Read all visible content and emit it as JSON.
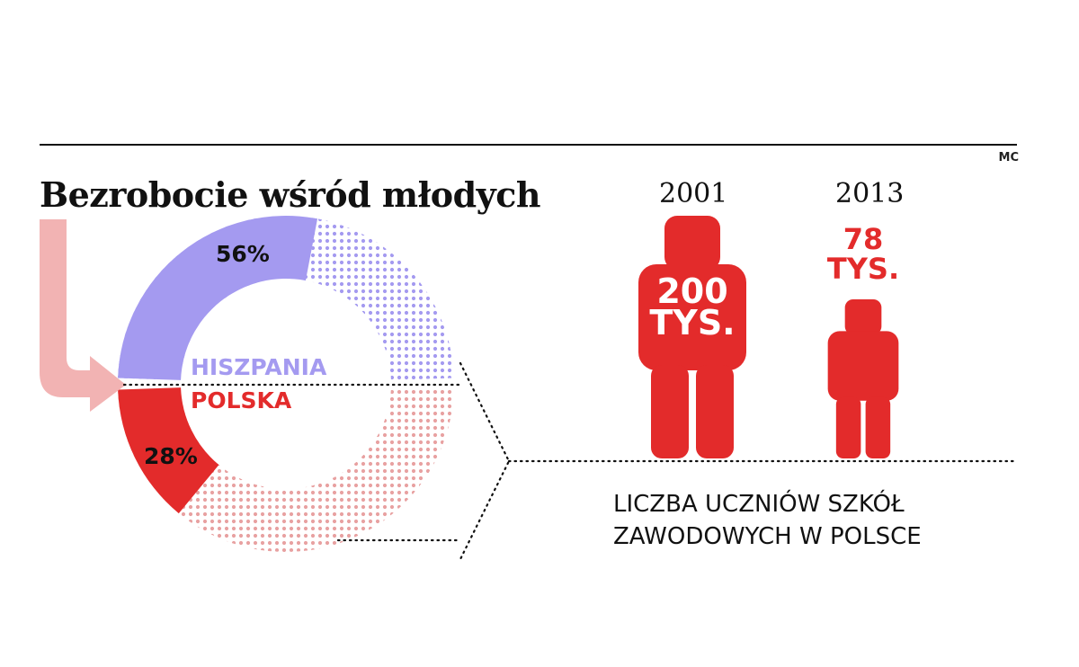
{
  "title": "Bezrobocie wśród młodych",
  "credit": "MC",
  "colors": {
    "spain": "#a49af0",
    "poland": "#e32b2b",
    "arrow": "#f2b3b3",
    "figure": "#e32b2b",
    "text": "#111111"
  },
  "chart_data": [
    {
      "type": "pie",
      "title": "Bezrobocie wśród młodych",
      "series": [
        {
          "name": "HISZPANIA",
          "value": 56,
          "label": "56%"
        },
        {
          "name": "POLSKA",
          "value": 28,
          "label": "28%"
        }
      ],
      "units": "%"
    },
    {
      "type": "bar",
      "title": "LICZBA UCZNIÓW SZKÓŁ ZAWODOWYCH W POLSCE",
      "categories": [
        "2001",
        "2013"
      ],
      "values": [
        200,
        78
      ],
      "value_labels": [
        {
          "value": "200",
          "unit": "TYS."
        },
        {
          "value": "78",
          "unit": "TYS."
        }
      ],
      "units": "TYS."
    }
  ],
  "caption": {
    "line1": "LICZBA UCZNIÓW SZKÓŁ",
    "line2": "ZAWODOWYCH W POLSCE"
  }
}
